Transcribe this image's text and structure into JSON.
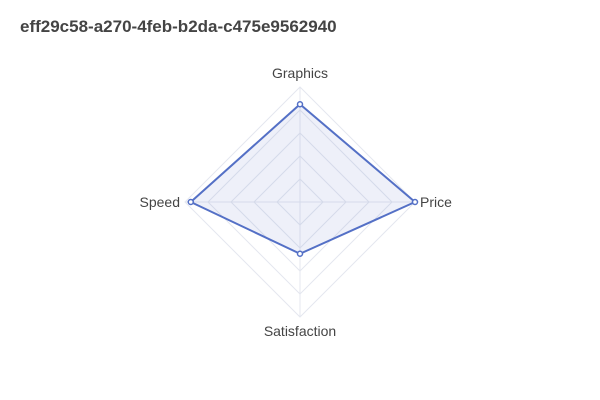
{
  "chart_data": {
    "type": "radar",
    "title": "eff29c58-a270-4feb-b2da-c475e9562940",
    "axes": [
      "Graphics",
      "Price",
      "Satisfaction",
      "Speed"
    ],
    "max": 100,
    "rings": 5,
    "series": [
      {
        "values": [
          85,
          100,
          45,
          95
        ]
      }
    ],
    "colors": {
      "line": "#5470c6",
      "fill": "#5470c6",
      "grid": "#e4e7ef",
      "text": "#444444"
    },
    "legend": "none"
  }
}
